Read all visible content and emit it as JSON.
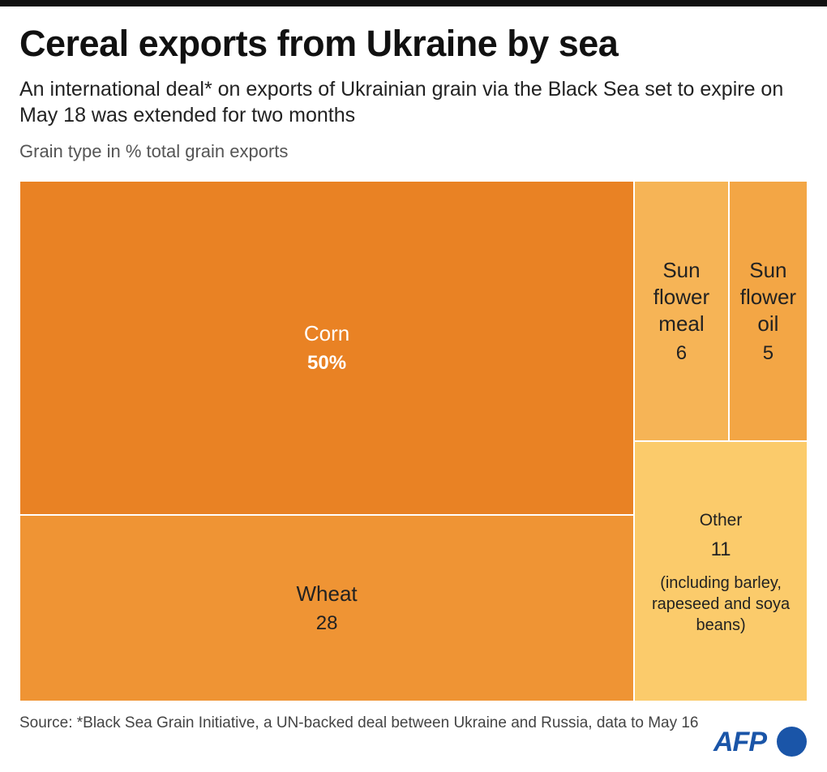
{
  "chart_data": {
    "type": "treemap",
    "title": "Cereal exports from Ukraine by sea",
    "subtitle": "An international deal* on exports of Ukrainian grain via the Black Sea set to expire on May 18 was extended for two months",
    "caption": "Grain type in % total grain exports",
    "categories": [
      "Corn",
      "Wheat",
      "Sun flower meal",
      "Sun flower oil",
      "Other"
    ],
    "values": [
      50,
      28,
      6,
      5,
      11
    ],
    "value_labels": [
      "50%",
      "28",
      "6",
      "5",
      "11"
    ],
    "colors": [
      "#e98224",
      "#ef9434",
      "#f6b456",
      "#f3a645",
      "#fbcb6b"
    ],
    "annotations": [
      {
        "category": "Other",
        "text": "(including barley, rapeseed and soya beans)"
      }
    ],
    "source": "Source: *Black Sea Grain Initiative, a UN-backed deal between Ukraine and Russia, data to May 16"
  },
  "logo": "AFP"
}
